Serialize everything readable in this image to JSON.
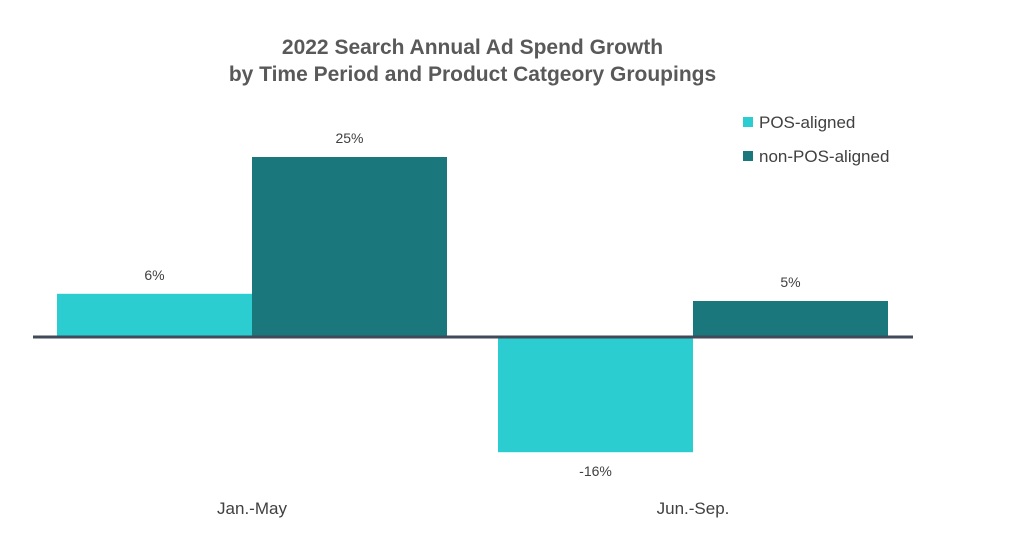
{
  "chart_data": {
    "type": "bar",
    "title_lines": [
      "2022 Search Annual Ad Spend Growth",
      "by Time Period and Product Catgeory Groupings"
    ],
    "categories": [
      "Jan.-May",
      "Jun.-Sep."
    ],
    "series": [
      {
        "name": "POS-aligned",
        "color": "#2ccdd0",
        "values": [
          6,
          -16
        ],
        "labels": [
          "6%",
          "-16%"
        ]
      },
      {
        "name": "non-POS-aligned",
        "color": "#1a787c",
        "values": [
          25,
          5
        ],
        "labels": [
          "25%",
          "5%"
        ]
      }
    ],
    "xlabel": "",
    "ylabel": "",
    "ylim": [
      -16,
      25
    ],
    "grid": false,
    "legend_position": "top-right",
    "axis_color": "#404a59",
    "text_color": "#404040"
  }
}
